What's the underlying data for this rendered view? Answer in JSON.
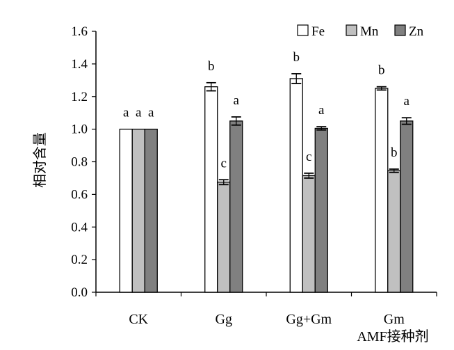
{
  "chart_data": {
    "type": "bar",
    "categories": [
      "CK",
      "Gg",
      "Gg+Gm",
      "Gm"
    ],
    "series": [
      {
        "name": "Fe",
        "values": [
          1.0,
          1.26,
          1.31,
          1.25
        ],
        "errors": [
          0,
          0.025,
          0.03,
          0.01
        ],
        "letters": [
          "a",
          "b",
          "b",
          "b"
        ],
        "color": "#ffffff"
      },
      {
        "name": "Mn",
        "values": [
          1.0,
          0.675,
          0.715,
          0.745
        ],
        "errors": [
          0,
          0.015,
          0.015,
          0.01
        ],
        "letters": [
          "a",
          "c",
          "c",
          "b"
        ],
        "color": "#c0c0c0"
      },
      {
        "name": "Zn",
        "values": [
          1.0,
          1.05,
          1.005,
          1.05
        ],
        "errors": [
          0,
          0.025,
          0.01,
          0.02
        ],
        "letters": [
          "a",
          "a",
          "a",
          "a"
        ],
        "color": "#808080"
      }
    ],
    "ylabel": "相对含量",
    "xlabel": "AMF接种剂",
    "ylim": [
      0,
      1.6
    ],
    "yticks": [
      "0.0",
      "0.2",
      "0.4",
      "0.6",
      "0.8",
      "1.0",
      "1.2",
      "1.4",
      "1.6"
    ],
    "grid": false,
    "legend": "top-right"
  }
}
